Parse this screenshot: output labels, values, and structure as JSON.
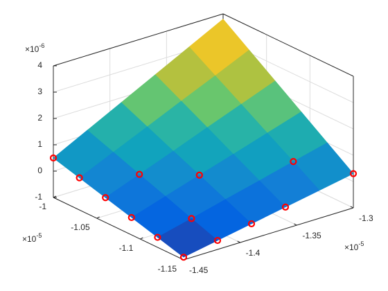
{
  "chart_data": {
    "type": "surface3d",
    "colormap": "parula",
    "grid": true,
    "xlim": [
      -1,
      -1.15
    ],
    "xticks": [
      -1,
      -1.05,
      -1.1,
      -1.15
    ],
    "ylim": [
      -1.45,
      -1.3
    ],
    "yticks": [
      -1.45,
      -1.4,
      -1.35,
      -1.3
    ],
    "zlim": [
      -1,
      4
    ],
    "zticks": [
      -1,
      0,
      1,
      2,
      3,
      4
    ],
    "x_exponent": {
      "base": "×10",
      "power": "-5"
    },
    "y_exponent": {
      "base": "×10",
      "power": "-5"
    },
    "z_exponent": {
      "base": "×10",
      "power": "-6"
    },
    "surface": {
      "x": [
        -1,
        -1.03,
        -1.06,
        -1.09,
        -1.12,
        -1.15
      ],
      "y": [
        -1.45,
        -1.42,
        -1.39,
        -1.36,
        -1.33,
        -1.3
      ],
      "z": [
        [
          0.5,
          1.16,
          1.82,
          2.48,
          3.14,
          3.8
        ],
        [
          0.22,
          0.8,
          1.37,
          1.95,
          2.52,
          3.1
        ],
        [
          -0.06,
          0.43,
          0.92,
          1.42,
          1.91,
          2.4
        ],
        [
          -0.34,
          0.07,
          0.48,
          0.88,
          1.29,
          1.7
        ],
        [
          -0.62,
          -0.3,
          0.03,
          0.35,
          0.68,
          1.0
        ],
        [
          -0.9,
          -0.66,
          -0.42,
          -0.18,
          0.06,
          0.3
        ]
      ]
    },
    "points": {
      "color": "#ff0000",
      "x": [
        -1,
        -1.03,
        -1.06,
        -1.09,
        -1.12,
        -1.15,
        -1.15,
        -1.15,
        -1.15,
        -1.12,
        -1.06,
        -1.09,
        -1.12,
        -1.15
      ],
      "y": [
        -1.45,
        -1.45,
        -1.45,
        -1.45,
        -1.45,
        -1.45,
        -1.39,
        -1.36,
        -1.3,
        -1.33,
        -1.42,
        -1.39,
        -1.42,
        -1.42
      ],
      "z": [
        0.5,
        0.22,
        -0.06,
        -0.34,
        -0.62,
        -0.9,
        -0.42,
        -0.18,
        0.3,
        0.68,
        0.43,
        0.48,
        -0.3,
        -0.66
      ]
    }
  }
}
